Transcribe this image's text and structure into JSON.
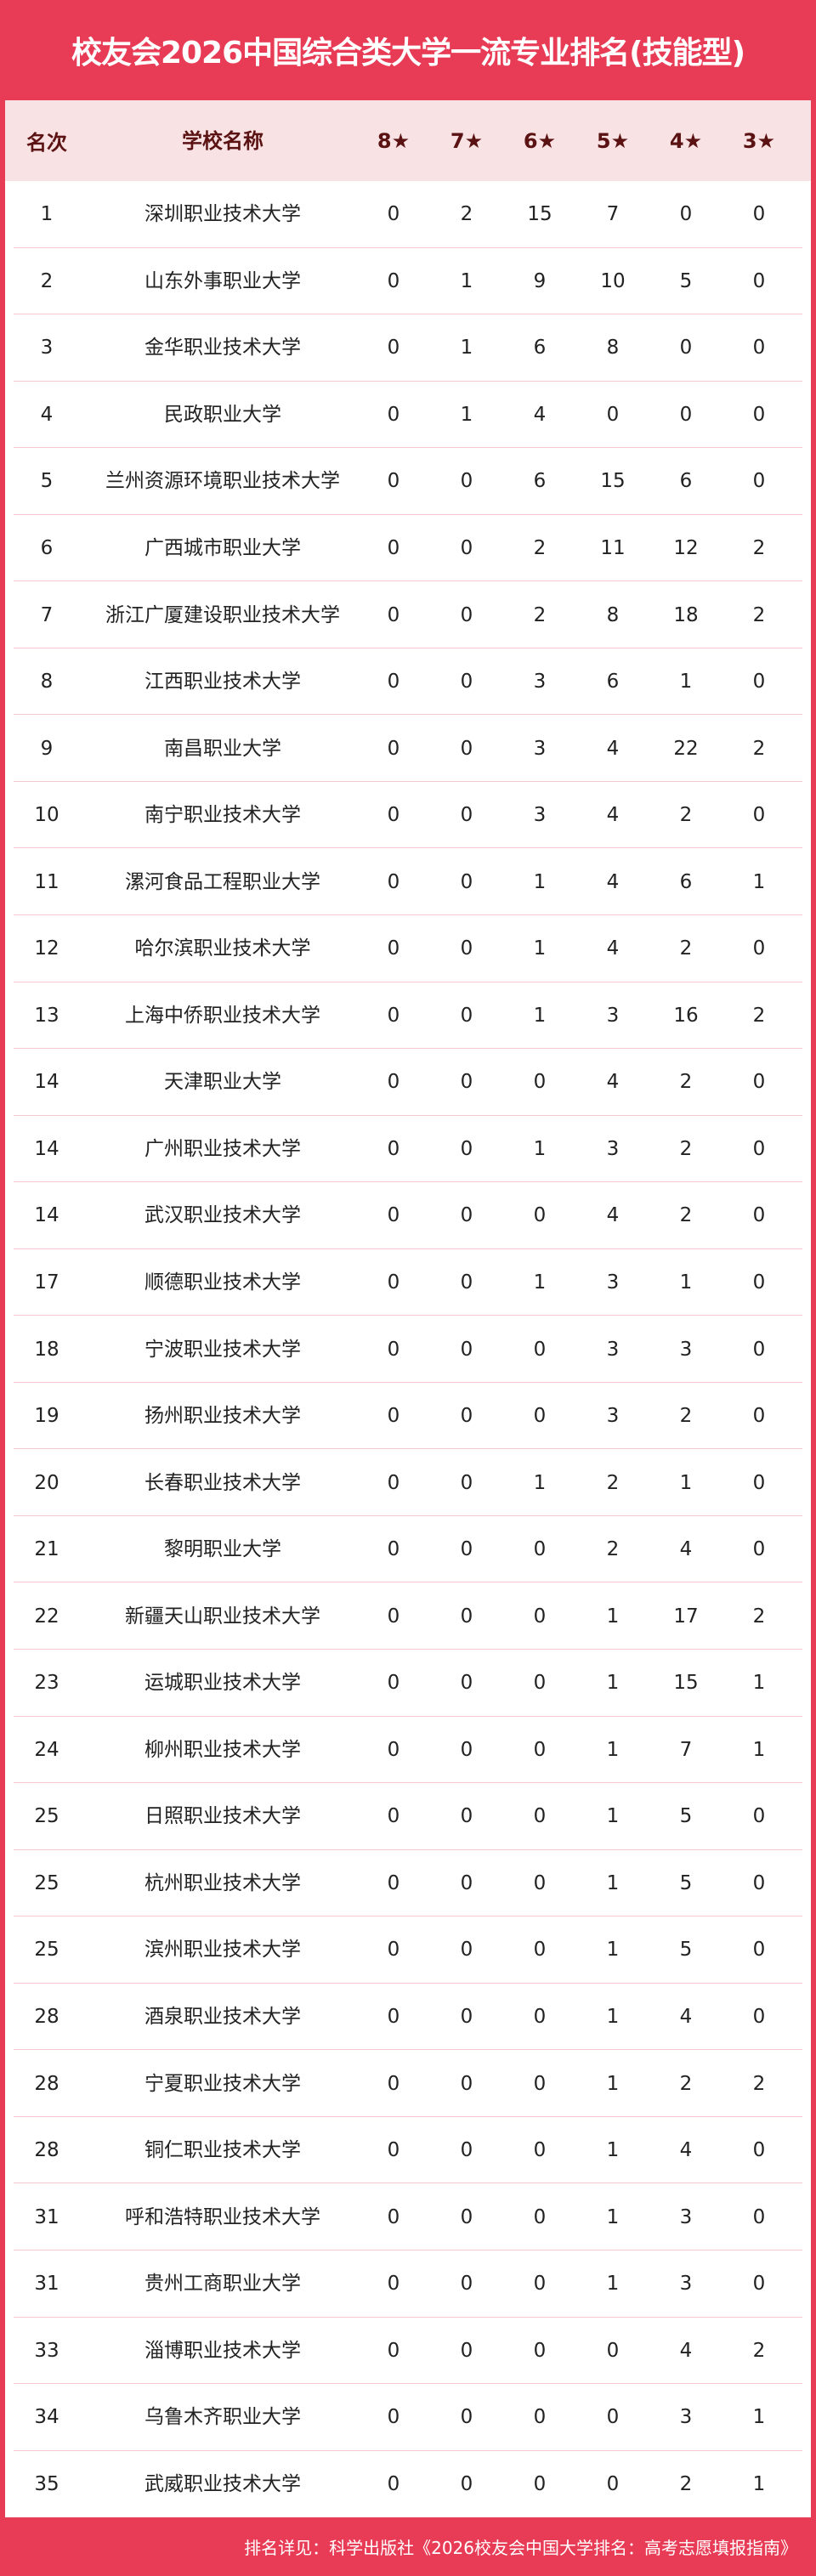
{
  "title": "校友会2026中国综合类大学一流专业排名(技能型)",
  "headers": {
    "rank": "名次",
    "name": "学校名称",
    "stars": [
      "8★",
      "7★",
      "6★",
      "5★",
      "4★",
      "3★"
    ]
  },
  "rows": [
    [
      "1",
      "深圳职业技术大学",
      0,
      2,
      15,
      7,
      0,
      0
    ],
    [
      "2",
      "山东外事职业大学",
      0,
      1,
      9,
      10,
      5,
      0
    ],
    [
      "3",
      "金华职业技术大学",
      0,
      1,
      6,
      8,
      0,
      0
    ],
    [
      "4",
      "民政职业大学",
      0,
      1,
      4,
      0,
      0,
      0
    ],
    [
      "5",
      "兰州资源环境职业技术大学",
      0,
      0,
      6,
      15,
      6,
      0
    ],
    [
      "6",
      "广西城市职业大学",
      0,
      0,
      2,
      11,
      12,
      2
    ],
    [
      "7",
      "浙江广厦建设职业技术大学",
      0,
      0,
      2,
      8,
      18,
      2
    ],
    [
      "8",
      "江西职业技术大学",
      0,
      0,
      3,
      6,
      1,
      0
    ],
    [
      "9",
      "南昌职业大学",
      0,
      0,
      3,
      4,
      22,
      2
    ],
    [
      "10",
      "南宁职业技术大学",
      0,
      0,
      3,
      4,
      2,
      0
    ],
    [
      "11",
      "漯河食品工程职业大学",
      0,
      0,
      1,
      4,
      6,
      1
    ],
    [
      "12",
      "哈尔滨职业技术大学",
      0,
      0,
      1,
      4,
      2,
      0
    ],
    [
      "13",
      "上海中侨职业技术大学",
      0,
      0,
      1,
      3,
      16,
      2
    ],
    [
      "14",
      "天津职业大学",
      0,
      0,
      0,
      4,
      2,
      0
    ],
    [
      "14",
      "广州职业技术大学",
      0,
      0,
      1,
      3,
      2,
      0
    ],
    [
      "14",
      "武汉职业技术大学",
      0,
      0,
      0,
      4,
      2,
      0
    ],
    [
      "17",
      "顺德职业技术大学",
      0,
      0,
      1,
      3,
      1,
      0
    ],
    [
      "18",
      "宁波职业技术大学",
      0,
      0,
      0,
      3,
      3,
      0
    ],
    [
      "19",
      "扬州职业技术大学",
      0,
      0,
      0,
      3,
      2,
      0
    ],
    [
      "20",
      "长春职业技术大学",
      0,
      0,
      1,
      2,
      1,
      0
    ],
    [
      "21",
      "黎明职业大学",
      0,
      0,
      0,
      2,
      4,
      0
    ],
    [
      "22",
      "新疆天山职业技术大学",
      0,
      0,
      0,
      1,
      17,
      2
    ],
    [
      "23",
      "运城职业技术大学",
      0,
      0,
      0,
      1,
      15,
      1
    ],
    [
      "24",
      "柳州职业技术大学",
      0,
      0,
      0,
      1,
      7,
      1
    ],
    [
      "25",
      "日照职业技术大学",
      0,
      0,
      0,
      1,
      5,
      0
    ],
    [
      "25",
      "杭州职业技术大学",
      0,
      0,
      0,
      1,
      5,
      0
    ],
    [
      "25",
      "滨州职业技术大学",
      0,
      0,
      0,
      1,
      5,
      0
    ],
    [
      "28",
      "酒泉职业技术大学",
      0,
      0,
      0,
      1,
      4,
      0
    ],
    [
      "28",
      "宁夏职业技术大学",
      0,
      0,
      0,
      1,
      2,
      2
    ],
    [
      "28",
      "铜仁职业技术大学",
      0,
      0,
      0,
      1,
      4,
      0
    ],
    [
      "31",
      "呼和浩特职业技术大学",
      0,
      0,
      0,
      1,
      3,
      0
    ],
    [
      "31",
      "贵州工商职业大学",
      0,
      0,
      0,
      1,
      3,
      0
    ],
    [
      "33",
      "淄博职业技术大学",
      0,
      0,
      0,
      0,
      4,
      2
    ],
    [
      "34",
      "乌鲁木齐职业大学",
      0,
      0,
      0,
      0,
      3,
      1
    ],
    [
      "35",
      "武威职业技术大学",
      0,
      0,
      0,
      0,
      2,
      1
    ]
  ],
  "footer": "排名详见：科学出版社《2026校友会中国大学排名：高考志愿填报指南》",
  "colors": {
    "accent": "#e83c56",
    "header_bg": "#f8e2e4",
    "header_text": "#5a1212"
  }
}
